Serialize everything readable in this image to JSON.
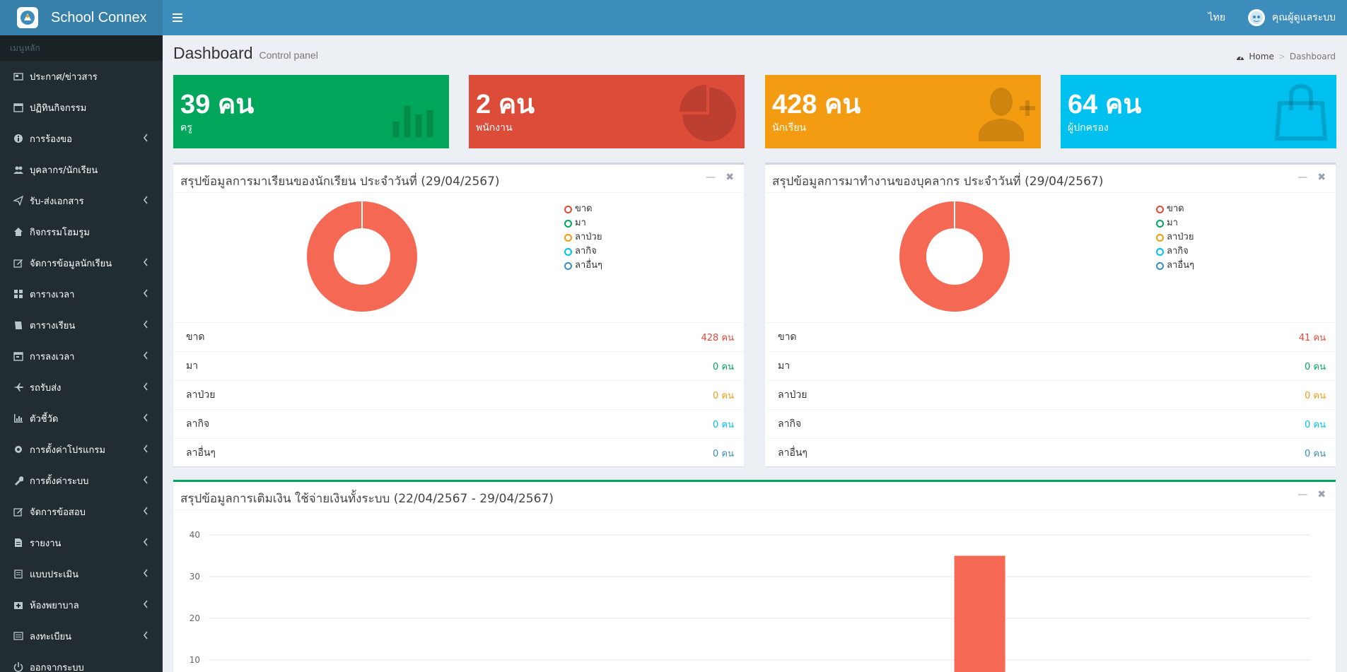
{
  "app": {
    "brand": "School Connex"
  },
  "header": {
    "language": "ไทย",
    "user_name": "คุณผู้ดูแลระบบ"
  },
  "sidebar": {
    "header": "เมนูหลัก",
    "items": [
      {
        "label": "ประกาศ/ข่าวสาร",
        "icon": "newspaper-icon",
        "has_children": false
      },
      {
        "label": "ปฏิทินกิจกรรม",
        "icon": "calendar-icon",
        "has_children": false
      },
      {
        "label": "การร้องขอ",
        "icon": "info-circle-icon",
        "has_children": true
      },
      {
        "label": "บุคลากร/นักเรียน",
        "icon": "users-icon",
        "has_children": false
      },
      {
        "label": "รับ-ส่งเอกสาร",
        "icon": "paper-plane-icon",
        "has_children": true
      },
      {
        "label": "กิจกรรมโฮมรูม",
        "icon": "home-icon",
        "has_children": false
      },
      {
        "label": "จัดการข้อมูลนักเรียน",
        "icon": "edit-icon",
        "has_children": true
      },
      {
        "label": "ตารางเวลา",
        "icon": "grid-icon",
        "has_children": true
      },
      {
        "label": "ตารางเรียน",
        "icon": "book-icon",
        "has_children": true
      },
      {
        "label": "การลงเวลา",
        "icon": "calendar-check-icon",
        "has_children": true
      },
      {
        "label": "รถรับส่ง",
        "icon": "plane-icon",
        "has_children": true
      },
      {
        "label": "ตัวชี้วัด",
        "icon": "bar-chart-icon",
        "has_children": true
      },
      {
        "label": "การตั้งค่าโปรแกรม",
        "icon": "gear-icon",
        "has_children": true
      },
      {
        "label": "การตั้งค่าระบบ",
        "icon": "wrench-icon",
        "has_children": true
      },
      {
        "label": "จัดการข้อสอบ",
        "icon": "edit-icon",
        "has_children": true
      },
      {
        "label": "รายงาน",
        "icon": "file-icon",
        "has_children": true
      },
      {
        "label": "แบบประเมิน",
        "icon": "clipboard-icon",
        "has_children": true
      },
      {
        "label": "ห้องพยาบาล",
        "icon": "medkit-icon",
        "has_children": true
      },
      {
        "label": "ลงทะเบียน",
        "icon": "list-icon",
        "has_children": true
      },
      {
        "label": "ออกจากระบบ",
        "icon": "power-icon",
        "has_children": false
      }
    ]
  },
  "page": {
    "title": "Dashboard",
    "subtitle": "Control panel"
  },
  "breadcrumb": {
    "home": "Home",
    "current": "Dashboard"
  },
  "stats": [
    {
      "value": "39 คน",
      "label": "ครู",
      "icon": "bar-chart-icon",
      "color": "#00a65a"
    },
    {
      "value": "2 คน",
      "label": "พนักงาน",
      "icon": "pie-chart-icon",
      "color": "#dd4b39"
    },
    {
      "value": "428 คน",
      "label": "นักเรียน",
      "icon": "user-plus-icon",
      "color": "#f39c12"
    },
    {
      "value": "64 คน",
      "label": "ผู้ปกครอง",
      "icon": "shopping-bag-icon",
      "color": "#00c0ef"
    }
  ],
  "student_attendance": {
    "title": "สรุปข้อมูลการมาเรียนของนักเรียน ประจำวันที่ (29/04/2567)",
    "legend": [
      "ขาด",
      "มา",
      "ลาป่วย",
      "ลากิจ",
      "ลาอื่นๆ"
    ],
    "rows": [
      {
        "label": "ขาด",
        "value": "428 คน"
      },
      {
        "label": "มา",
        "value": "0 คน"
      },
      {
        "label": "ลาป่วย",
        "value": "0 คน"
      },
      {
        "label": "ลากิจ",
        "value": "0 คน"
      },
      {
        "label": "ลาอื่นๆ",
        "value": "0 คน"
      }
    ]
  },
  "staff_attendance": {
    "title": "สรุปข้อมูลการมาทำงานของบุคลากร ประจำวันที่ (29/04/2567)",
    "legend": [
      "ขาด",
      "มา",
      "ลาป่วย",
      "ลากิจ",
      "ลาอื่นๆ"
    ],
    "rows": [
      {
        "label": "ขาด",
        "value": "41 คน"
      },
      {
        "label": "มา",
        "value": "0 คน"
      },
      {
        "label": "ลาป่วย",
        "value": "0 คน"
      },
      {
        "label": "ลากิจ",
        "value": "0 คน"
      },
      {
        "label": "ลาอื่นๆ",
        "value": "0 คน"
      }
    ]
  },
  "status_colors": [
    "#dd4b39",
    "#00a65a",
    "#f39c12",
    "#00c0ef",
    "#3c8dbc"
  ],
  "topup": {
    "title": "สรุปข้อมูลการเติมเงิน ใช้จ่ายเงินทั้งระบบ (22/04/2567 - 29/04/2567)"
  },
  "chart_data": [
    {
      "type": "pie",
      "title": "",
      "categories": [
        "ขาด",
        "มา",
        "ลาป่วย",
        "ลากิจ",
        "ลาอื่นๆ"
      ],
      "values": [
        428,
        0,
        0,
        0,
        0
      ],
      "colors": [
        "#f56954",
        "#00a65a",
        "#f39c12",
        "#00c0ef",
        "#3c8dbc"
      ],
      "legend": "right"
    },
    {
      "type": "pie",
      "title": "",
      "categories": [
        "ขาด",
        "มา",
        "ลาป่วย",
        "ลากิจ",
        "ลาอื่นๆ"
      ],
      "values": [
        41,
        0,
        0,
        0,
        0
      ],
      "colors": [
        "#f56954",
        "#00a65a",
        "#f39c12",
        "#00c0ef",
        "#3c8dbc"
      ],
      "legend": "right"
    },
    {
      "type": "bar",
      "title": "",
      "yticks": [
        10,
        20,
        30,
        40
      ],
      "ylim": [
        0,
        40
      ],
      "series": [
        {
          "bar_fraction": 0.7,
          "value": 35,
          "color": "#f56954"
        }
      ],
      "grid": true
    }
  ]
}
